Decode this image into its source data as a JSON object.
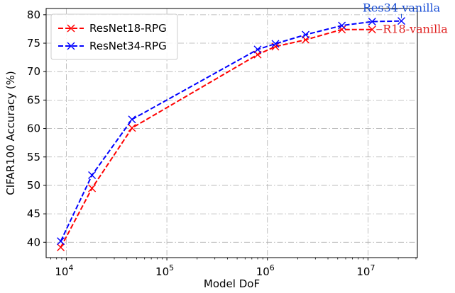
{
  "chart_data": {
    "type": "line",
    "xlabel": "Model DoF",
    "ylabel": "CIFAR100 Accuracy (%)",
    "xscale": "log",
    "xlim": [
      6300,
      31000000
    ],
    "ylim": [
      37.3,
      81.1
    ],
    "x_ticks": [
      {
        "value": 10000,
        "base": "10",
        "exp": "4"
      },
      {
        "value": 100000,
        "base": "10",
        "exp": "5"
      },
      {
        "value": 1000000,
        "base": "10",
        "exp": "6"
      },
      {
        "value": 10000000,
        "base": "10",
        "exp": "7"
      }
    ],
    "y_ticks": [
      "40",
      "45",
      "50",
      "55",
      "60",
      "65",
      "70",
      "75",
      "80"
    ],
    "grid": true,
    "grid_style": "dash-dot",
    "legend_position": "top-left",
    "series": [
      {
        "name": "ResNet18-RPG",
        "color": "#ff0000",
        "marker": "x",
        "linestyle": "dashed",
        "x": [
          8800,
          18000,
          45000,
          800000,
          1200000,
          2400000,
          5500000,
          11000000
        ],
        "y": [
          39.1,
          49.5,
          60.1,
          73.0,
          74.4,
          75.6,
          77.4,
          77.4
        ]
      },
      {
        "name": "ResNet34-RPG",
        "color": "#0000ff",
        "marker": "x",
        "linestyle": "dashed",
        "x": [
          8800,
          18000,
          45000,
          800000,
          1200000,
          2400000,
          5500000,
          11000000,
          21500000
        ],
        "y": [
          40.2,
          51.8,
          61.6,
          73.9,
          74.9,
          76.5,
          78.1,
          78.8,
          78.9
        ]
      }
    ],
    "annotations": [
      {
        "text": "Res34-vanilla",
        "color": "#1a4fd6",
        "x": 21500000,
        "y": 78.9,
        "placement": "above"
      },
      {
        "text": "R18-vanilla",
        "color": "#e0201f",
        "x": 11000000,
        "y": 77.4,
        "placement": "right"
      }
    ]
  }
}
